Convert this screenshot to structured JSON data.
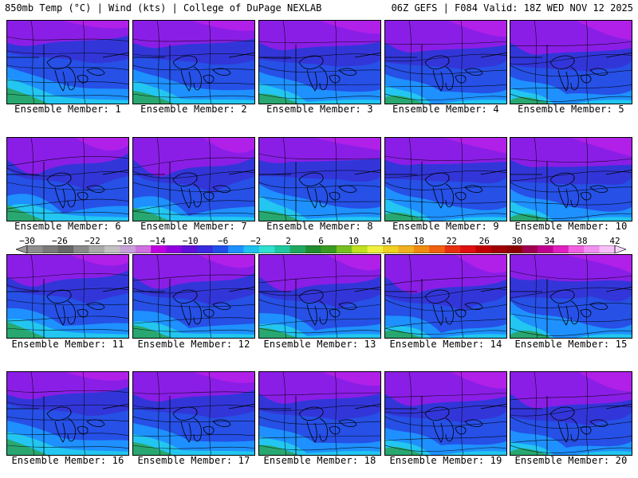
{
  "header": {
    "left": "850mb Temp (°C) | Wind (kts) | College of DuPage NEXLAB",
    "right": "06Z GEFS | F084 Valid: 18Z WED NOV 12 2025"
  },
  "members": [
    {
      "id": 1,
      "label": "Ensemble Member: 1"
    },
    {
      "id": 2,
      "label": "Ensemble Member: 2"
    },
    {
      "id": 3,
      "label": "Ensemble Member: 3"
    },
    {
      "id": 4,
      "label": "Ensemble Member: 4"
    },
    {
      "id": 5,
      "label": "Ensemble Member: 5"
    },
    {
      "id": 6,
      "label": "Ensemble Member: 6"
    },
    {
      "id": 7,
      "label": "Ensemble Member: 7"
    },
    {
      "id": 8,
      "label": "Ensemble Member: 8"
    },
    {
      "id": 9,
      "label": "Ensemble Member: 9"
    },
    {
      "id": 10,
      "label": "Ensemble Member: 10"
    },
    {
      "id": 11,
      "label": "Ensemble Member: 11"
    },
    {
      "id": 12,
      "label": "Ensemble Member: 12"
    },
    {
      "id": 13,
      "label": "Ensemble Member: 13"
    },
    {
      "id": 14,
      "label": "Ensemble Member: 14"
    },
    {
      "id": 15,
      "label": "Ensemble Member: 15"
    },
    {
      "id": 16,
      "label": "Ensemble Member: 16"
    },
    {
      "id": 17,
      "label": "Ensemble Member: 17"
    },
    {
      "id": 18,
      "label": "Ensemble Member: 18"
    },
    {
      "id": 19,
      "label": "Ensemble Member: 19"
    },
    {
      "id": 20,
      "label": "Ensemble Member: 20"
    }
  ],
  "color_scale": {
    "labels": [
      "−30",
      "−26",
      "−22",
      "−18",
      "−14",
      "−10",
      "−6",
      "−2",
      "2",
      "6",
      "10",
      "14",
      "18",
      "22",
      "26",
      "30",
      "34",
      "38",
      "42"
    ],
    "colors": [
      "#8e8e8e",
      "#7a7a7a",
      "#676767",
      "#8a8a8a",
      "#a9a9a9",
      "#c2c2c2",
      "#c8a0d8",
      "#d070e0",
      "#c000e0",
      "#9000e0",
      "#6010d8",
      "#3a2ae0",
      "#2050e8",
      "#1e90ff",
      "#20c0f0",
      "#30e0d0",
      "#20c8a0",
      "#20a860",
      "#208c30",
      "#3a9a20",
      "#78c020",
      "#c0e020",
      "#f0f040",
      "#f0d020",
      "#f0b020",
      "#f08c10",
      "#f06010",
      "#e83010",
      "#e01010",
      "#c00000",
      "#a00000",
      "#8c0000",
      "#a00050",
      "#c00090",
      "#e020c0",
      "#f060e0",
      "#f090f0",
      "#f8c0f8"
    ]
  }
}
